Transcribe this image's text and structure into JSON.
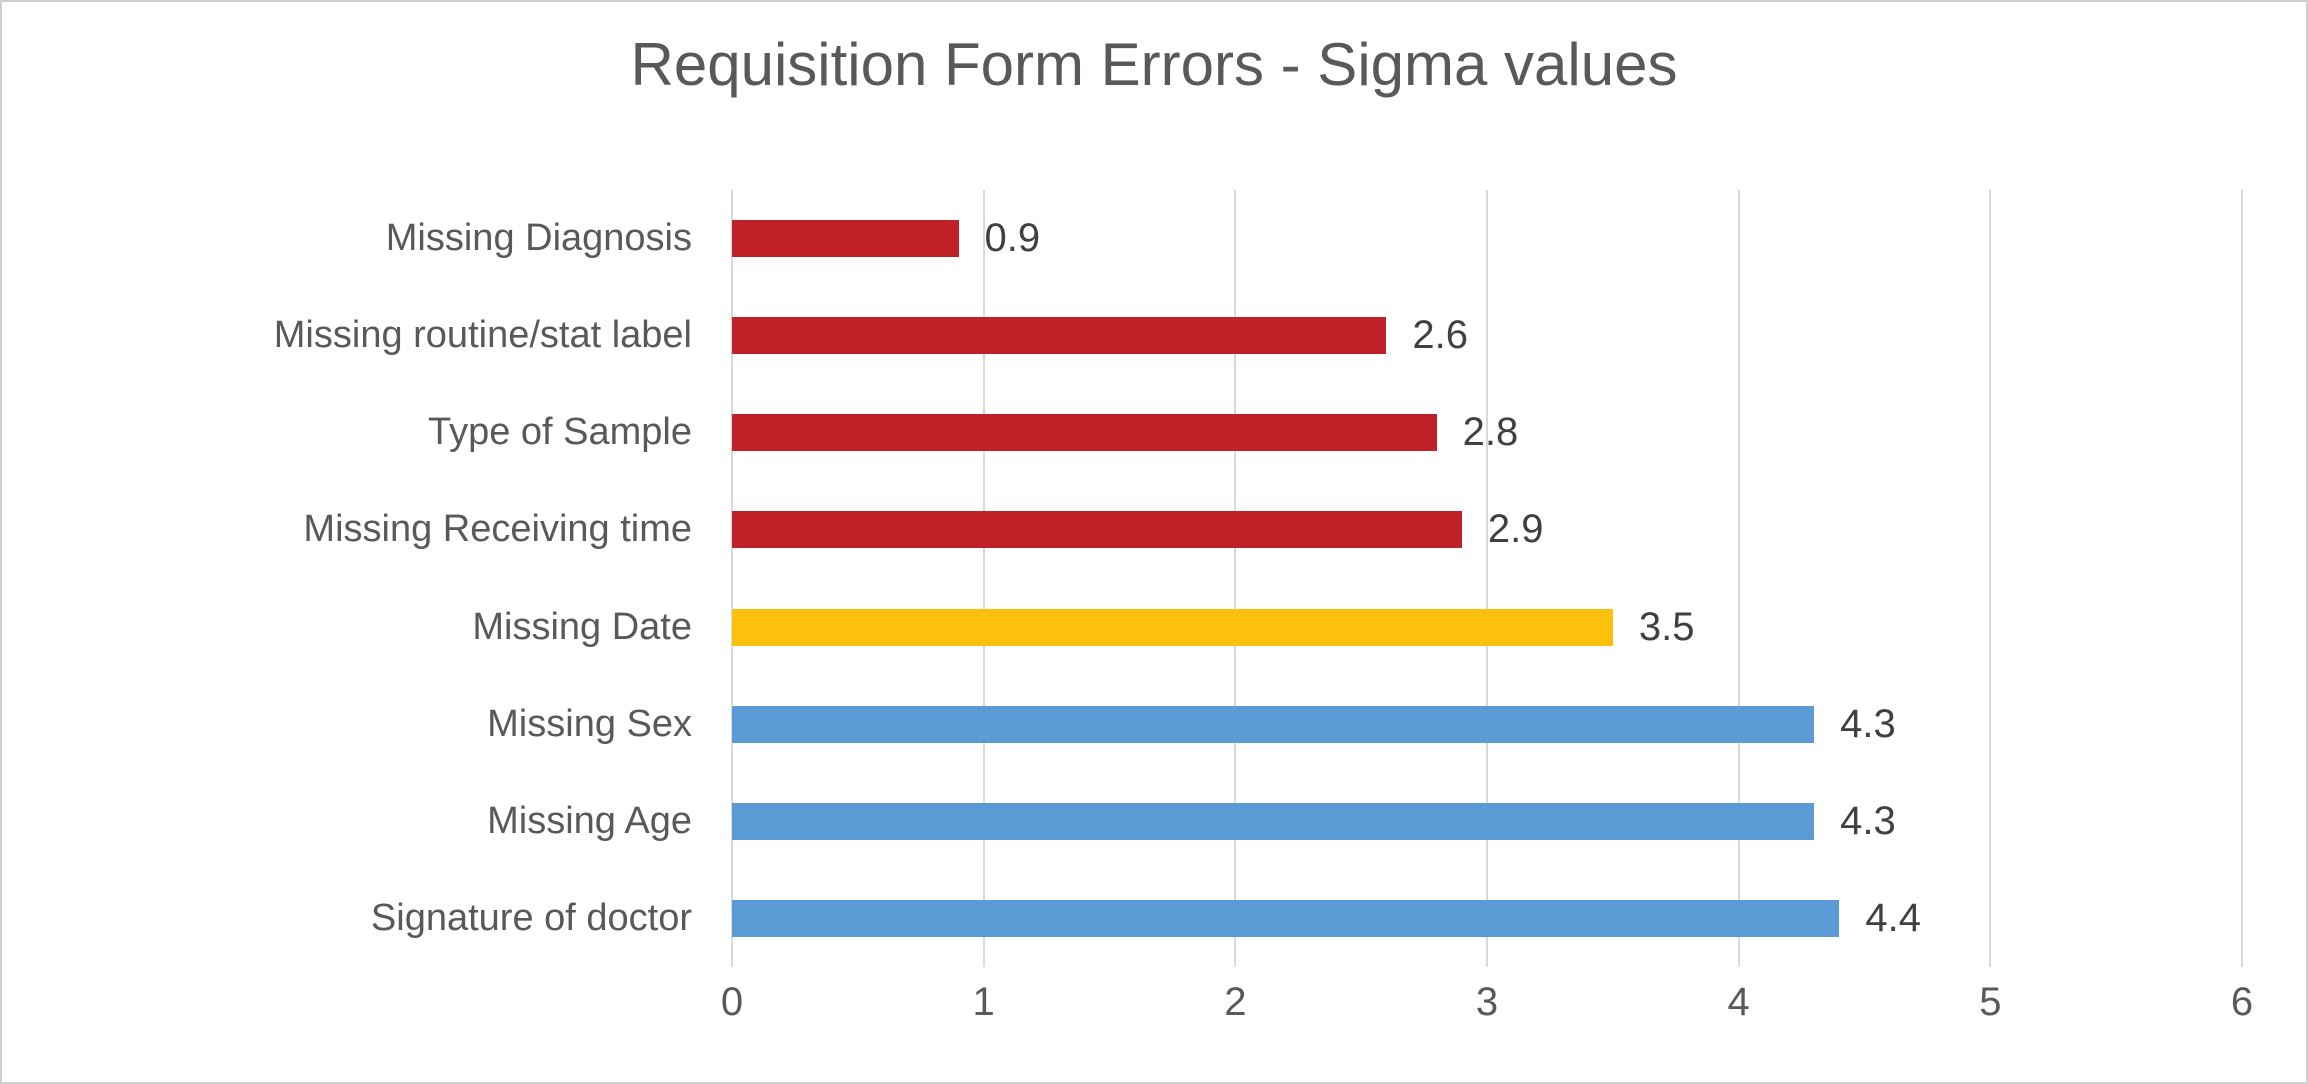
{
  "chart_data": {
    "type": "bar",
    "orientation": "horizontal",
    "title": "Requisition Form Errors - Sigma values",
    "categories": [
      "Missing Diagnosis",
      "Missing routine/stat label",
      "Type of Sample",
      "Missing Receiving time",
      "Missing Date",
      "Missing Sex",
      "Missing Age",
      "Signature of doctor"
    ],
    "values": [
      0.9,
      2.6,
      2.8,
      2.9,
      3.5,
      4.3,
      4.3,
      4.4
    ],
    "data_labels": [
      "0.9",
      "2.6",
      "2.8",
      "2.9",
      "3.5",
      "4.3",
      "4.3",
      "4.4"
    ],
    "bar_colors": [
      "#c02128",
      "#c02128",
      "#c02128",
      "#c02128",
      "#fdc00d",
      "#5b9bd5",
      "#5b9bd5",
      "#5b9bd5"
    ],
    "x_ticks": [
      "0",
      "1",
      "2",
      "3",
      "4",
      "5",
      "6"
    ],
    "xlim": [
      0,
      6
    ],
    "grid": true,
    "legend_position": "none",
    "colors": {
      "red": "#c02128",
      "gold": "#fdc00d",
      "blue": "#5b9bd5",
      "title_text": "#595959",
      "axis_text": "#595959",
      "data_label_text": "#404040",
      "gridline": "#d9d9d9",
      "chart_border": "#d0d0d0",
      "background": "#ffffff"
    }
  }
}
